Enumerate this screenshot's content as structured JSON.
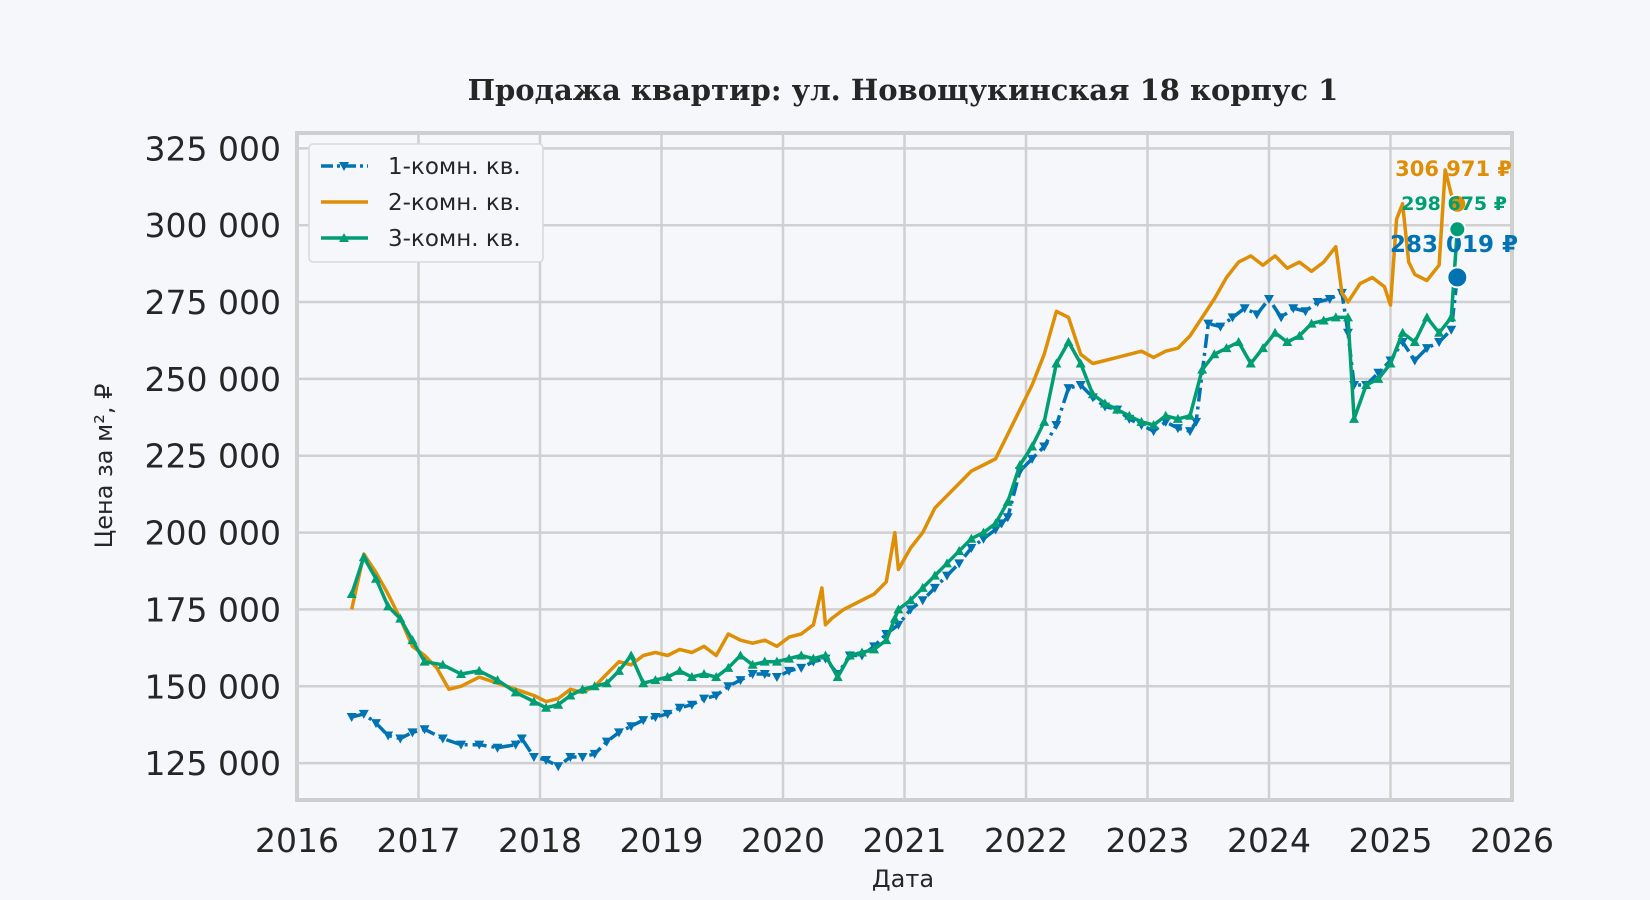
{
  "chart_data": {
    "type": "line",
    "title": "Продажа квартир: ул. Новощукинская 18 корпус 1",
    "xlabel": "Дата",
    "ylabel": "Цена за м², ₽",
    "xlim": [
      2016.0,
      2026.0
    ],
    "ylim": [
      113000,
      330000
    ],
    "x_ticks": [
      "2016",
      "2017",
      "2018",
      "2019",
      "2020",
      "2021",
      "2022",
      "2023",
      "2024",
      "2025",
      "2026"
    ],
    "y_ticks": [
      "125 000",
      "150 000",
      "175 000",
      "200 000",
      "225 000",
      "250 000",
      "275 000",
      "300 000",
      "325 000"
    ],
    "grid": true,
    "legend_position": "top-left",
    "series": [
      {
        "name": "1-комн. кв.",
        "color": "#0173b2",
        "style": "dash-dot with triangle-down markers",
        "x": [
          2016.45,
          2016.55,
          2016.65,
          2016.75,
          2016.85,
          2016.95,
          2017.05,
          2017.2,
          2017.35,
          2017.5,
          2017.65,
          2017.8,
          2017.85,
          2017.95,
          2018.05,
          2018.15,
          2018.25,
          2018.35,
          2018.45,
          2018.55,
          2018.65,
          2018.75,
          2018.85,
          2018.95,
          2019.05,
          2019.15,
          2019.25,
          2019.35,
          2019.45,
          2019.55,
          2019.65,
          2019.75,
          2019.85,
          2019.95,
          2020.05,
          2020.15,
          2020.25,
          2020.35,
          2020.45,
          2020.55,
          2020.65,
          2020.75,
          2020.85,
          2020.95,
          2021.05,
          2021.15,
          2021.25,
          2021.35,
          2021.45,
          2021.55,
          2021.65,
          2021.75,
          2021.8,
          2021.85,
          2021.95,
          2022.05,
          2022.15,
          2022.25,
          2022.35,
          2022.45,
          2022.55,
          2022.65,
          2022.75,
          2022.85,
          2022.95,
          2023.05,
          2023.15,
          2023.25,
          2023.35,
          2023.4,
          2023.5,
          2023.6,
          2023.7,
          2023.8,
          2023.9,
          2024.0,
          2024.1,
          2024.2,
          2024.3,
          2024.4,
          2024.5,
          2024.6,
          2024.65,
          2024.7,
          2024.8,
          2024.9,
          2025.0,
          2025.1,
          2025.2,
          2025.3,
          2025.4,
          2025.5,
          2025.55
        ],
        "values": [
          140000,
          141000,
          138000,
          134000,
          133000,
          135000,
          136000,
          133000,
          131000,
          131000,
          130000,
          131000,
          133000,
          127000,
          126000,
          124000,
          127000,
          127000,
          128000,
          132000,
          135000,
          137000,
          139000,
          140000,
          141000,
          143000,
          144000,
          146000,
          147000,
          150000,
          152000,
          154000,
          154000,
          153000,
          155000,
          156000,
          158000,
          159000,
          154000,
          160000,
          160000,
          163000,
          167000,
          170000,
          175000,
          178000,
          182000,
          186000,
          190000,
          195000,
          198000,
          201000,
          203000,
          205000,
          220000,
          224000,
          228000,
          235000,
          247000,
          248000,
          244000,
          241000,
          240000,
          237000,
          235000,
          233000,
          236000,
          234000,
          233000,
          236000,
          268000,
          267000,
          270000,
          273000,
          271000,
          276000,
          270000,
          273000,
          272000,
          275000,
          276000,
          278000,
          265000,
          248000,
          248000,
          252000,
          256000,
          262000,
          256000,
          260000,
          262000,
          266000,
          283019
        ],
        "end_label": "283 019 ₽"
      },
      {
        "name": "2-комн. кв.",
        "color": "#de8f05",
        "style": "solid",
        "x": [
          2016.45,
          2016.55,
          2016.65,
          2016.75,
          2016.85,
          2016.95,
          2017.05,
          2017.15,
          2017.25,
          2017.35,
          2017.5,
          2017.65,
          2017.8,
          2017.95,
          2018.05,
          2018.15,
          2018.25,
          2018.35,
          2018.45,
          2018.55,
          2018.65,
          2018.75,
          2018.85,
          2018.95,
          2019.05,
          2019.15,
          2019.25,
          2019.35,
          2019.45,
          2019.55,
          2019.65,
          2019.75,
          2019.85,
          2019.95,
          2020.05,
          2020.15,
          2020.25,
          2020.32,
          2020.35,
          2020.4,
          2020.5,
          2020.65,
          2020.75,
          2020.85,
          2020.92,
          2020.95,
          2021.05,
          2021.15,
          2021.25,
          2021.35,
          2021.45,
          2021.55,
          2021.65,
          2021.75,
          2021.85,
          2021.95,
          2022.05,
          2022.15,
          2022.25,
          2022.35,
          2022.45,
          2022.55,
          2022.65,
          2022.75,
          2022.85,
          2022.95,
          2023.05,
          2023.15,
          2023.25,
          2023.35,
          2023.45,
          2023.55,
          2023.65,
          2023.75,
          2023.85,
          2023.95,
          2024.05,
          2024.15,
          2024.25,
          2024.35,
          2024.45,
          2024.55,
          2024.6,
          2024.65,
          2024.75,
          2024.85,
          2024.95,
          2025.0,
          2025.05,
          2025.1,
          2025.15,
          2025.2,
          2025.3,
          2025.4,
          2025.45,
          2025.5,
          2025.55
        ],
        "values": [
          175000,
          193000,
          187000,
          180000,
          172000,
          163000,
          160000,
          156000,
          149000,
          150000,
          153000,
          151000,
          149000,
          147000,
          145000,
          146000,
          149000,
          148000,
          150000,
          154000,
          158000,
          157000,
          160000,
          161000,
          160000,
          162000,
          161000,
          163000,
          160000,
          167000,
          165000,
          164000,
          165000,
          163000,
          166000,
          167000,
          170000,
          182000,
          170000,
          172000,
          175000,
          178000,
          180000,
          184000,
          200000,
          188000,
          195000,
          200000,
          208000,
          212000,
          216000,
          220000,
          222000,
          224000,
          232000,
          240000,
          248000,
          258000,
          272000,
          270000,
          258000,
          255000,
          256000,
          257000,
          258000,
          259000,
          257000,
          259000,
          260000,
          264000,
          270000,
          276000,
          283000,
          288000,
          290000,
          287000,
          290000,
          286000,
          288000,
          285000,
          288000,
          293000,
          278000,
          275000,
          281000,
          283000,
          280000,
          274000,
          302000,
          307000,
          288000,
          284000,
          282000,
          287000,
          318000,
          310000,
          306971
        ],
        "end_label": "306 971 ₽"
      },
      {
        "name": "3-комн. кв.",
        "color": "#029e73",
        "style": "solid with triangle-up markers",
        "x": [
          2016.45,
          2016.55,
          2016.65,
          2016.75,
          2016.85,
          2016.95,
          2017.05,
          2017.2,
          2017.35,
          2017.5,
          2017.65,
          2017.8,
          2017.95,
          2018.05,
          2018.15,
          2018.25,
          2018.35,
          2018.45,
          2018.55,
          2018.65,
          2018.75,
          2018.85,
          2018.95,
          2019.05,
          2019.15,
          2019.25,
          2019.35,
          2019.45,
          2019.55,
          2019.65,
          2019.75,
          2019.85,
          2019.95,
          2020.05,
          2020.15,
          2020.25,
          2020.35,
          2020.45,
          2020.55,
          2020.65,
          2020.75,
          2020.85,
          2020.92,
          2020.95,
          2021.05,
          2021.15,
          2021.25,
          2021.35,
          2021.45,
          2021.55,
          2021.65,
          2021.75,
          2021.85,
          2021.95,
          2022.05,
          2022.15,
          2022.25,
          2022.35,
          2022.45,
          2022.55,
          2022.65,
          2022.75,
          2022.85,
          2022.95,
          2023.05,
          2023.15,
          2023.25,
          2023.35,
          2023.45,
          2023.55,
          2023.65,
          2023.75,
          2023.85,
          2023.95,
          2024.05,
          2024.15,
          2024.25,
          2024.35,
          2024.45,
          2024.55,
          2024.65,
          2024.7,
          2024.8,
          2024.9,
          2025.0,
          2025.1,
          2025.2,
          2025.3,
          2025.4,
          2025.5,
          2025.55
        ],
        "values": [
          180000,
          192000,
          185000,
          176000,
          172000,
          165000,
          158000,
          157000,
          154000,
          155000,
          152000,
          148000,
          145000,
          143000,
          144000,
          147000,
          149000,
          150000,
          151000,
          155000,
          160000,
          151000,
          152000,
          153000,
          155000,
          153000,
          154000,
          153000,
          156000,
          160000,
          157000,
          158000,
          158000,
          159000,
          160000,
          159000,
          160000,
          153000,
          160000,
          161000,
          162000,
          165000,
          172000,
          175000,
          178000,
          182000,
          186000,
          190000,
          194000,
          198000,
          200000,
          203000,
          210000,
          222000,
          228000,
          236000,
          255000,
          262000,
          255000,
          245000,
          242000,
          240000,
          238000,
          236000,
          235000,
          238000,
          237000,
          238000,
          253000,
          258000,
          260000,
          262000,
          255000,
          260000,
          265000,
          262000,
          264000,
          268000,
          269000,
          270000,
          270000,
          237000,
          248000,
          250000,
          255000,
          265000,
          262000,
          270000,
          265000,
          270000,
          298675
        ],
        "end_label": "298 675 ₽"
      }
    ]
  }
}
